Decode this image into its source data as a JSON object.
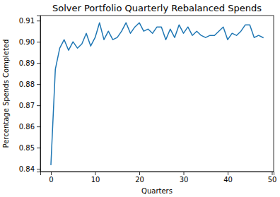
{
  "chart_data": {
    "type": "line",
    "title": "Solver Portfolio Quarterly Rebalanced Spends",
    "x_label": "Quarters",
    "y_label": "Percentage Spends Completed",
    "x": [
      0,
      1,
      2,
      3,
      4,
      5,
      6,
      7,
      8,
      9,
      10,
      11,
      12,
      13,
      14,
      15,
      16,
      17,
      18,
      19,
      20,
      21,
      22,
      23,
      24,
      25,
      26,
      27,
      28,
      29,
      30,
      31,
      32,
      33,
      34,
      35,
      36,
      37,
      38,
      39,
      40,
      41,
      42,
      43,
      44,
      45,
      46,
      47,
      48
    ],
    "values": [
      0.842,
      0.887,
      0.897,
      0.901,
      0.896,
      0.9,
      0.897,
      0.899,
      0.904,
      0.898,
      0.902,
      0.909,
      0.901,
      0.905,
      0.901,
      0.902,
      0.905,
      0.909,
      0.904,
      0.907,
      0.909,
      0.905,
      0.906,
      0.904,
      0.907,
      0.907,
      0.901,
      0.906,
      0.902,
      0.908,
      0.904,
      0.907,
      0.903,
      0.905,
      0.903,
      0.902,
      0.903,
      0.903,
      0.905,
      0.907,
      0.901,
      0.904,
      0.903,
      0.905,
      0.908,
      0.908,
      0.902,
      0.903,
      0.902
    ],
    "color": "#1f77b4",
    "xlim": [
      -2.4,
      50.4
    ],
    "xticks": [
      0,
      10,
      20,
      30,
      40,
      50
    ],
    "ylim": [
      0.8387,
      0.9124
    ],
    "yticks": [
      0.84,
      0.85,
      0.86,
      0.87,
      0.88,
      0.89,
      {
        "value": 0.9,
        "label": "0.90"
      },
      0.91
    ],
    "grid": false
  }
}
